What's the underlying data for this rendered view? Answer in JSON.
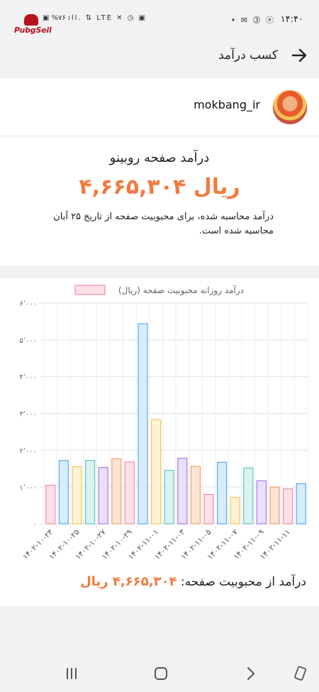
{
  "status_bar": {
    "time": "۱۴:۴۰",
    "left_icons": "▣ %۷۶ ıll. ⇅ LTE ✕ ◷ ▣",
    "right_icons": "• ✉ ⓷ ⓔ"
  },
  "logo": {
    "text": "PubgSell"
  },
  "header": {
    "title": "کسب درآمد"
  },
  "profile": {
    "username": "mokbang_ir"
  },
  "revenue": {
    "heading": "درآمد صفحه روبینو",
    "amount": "۴,۶۶۵,۳۰۴ ریال",
    "description": "درآمد محاسبه شده، برای محبوبیت صفحه از تاریخ ۲۵ آبان محاسبه شده است."
  },
  "chart_data": {
    "type": "bar",
    "legend": "درآمد روزانه محبوبیت صفحه (ریال)",
    "y_ticks": [
      "۰",
      "۱٬۰۰۰",
      "۲٬۰۰۰",
      "۳٬۰۰۰",
      "۴٬۰۰۰",
      "۵٬۰۰۰",
      "۶٬۰۰۰"
    ],
    "ylim": [
      0,
      6000
    ],
    "x_tick_labels": [
      "۱۴۰۲-۱۰-۲۳",
      "۱۴۰۲-۱۰-۲۵",
      "۱۴۰۲-۱۰-۲۷",
      "۱۴۰۲-۱۰-۲۹",
      "۱۴۰۲-۱۱-۰۱",
      "۱۴۰۲-۱۱-۰۳",
      "۱۴۰۲-۱۱-۰۵",
      "۱۴۰۲-۱۱-۰۷",
      "۱۴۰۲-۱۱-۰۹",
      "۱۴۰۲-۱۱-۱۱"
    ],
    "values": [
      1050,
      1720,
      1550,
      1720,
      1530,
      1770,
      1680,
      5440,
      2830,
      1450,
      1780,
      1560,
      800,
      1670,
      720,
      1520,
      1170,
      1000,
      950,
      1090
    ],
    "bar_fill_colors": [
      "#fde1e7",
      "#d6ecfb",
      "#fff3d6",
      "#d9f3f1",
      "#ebe0fb",
      "#fde3d3",
      "#fde1e7",
      "#d6ecfb",
      "#fff3d6",
      "#d9f3f1",
      "#ebe0fb",
      "#fde3d3",
      "#fde1e7",
      "#d6ecfb",
      "#fff3d6",
      "#d9f3f1",
      "#ebe0fb",
      "#fde3d3",
      "#fde1e7",
      "#d6ecfb"
    ],
    "bar_stroke_colors": [
      "#f28ca3",
      "#5aa9e6",
      "#f5c65a",
      "#5ec7bd",
      "#a47bea",
      "#f4a06b",
      "#f28ca3",
      "#5aa9e6",
      "#f5c65a",
      "#5ec7bd",
      "#a47bea",
      "#f4a06b",
      "#f28ca3",
      "#5aa9e6",
      "#f5c65a",
      "#5ec7bd",
      "#a47bea",
      "#f4a06b",
      "#f28ca3",
      "#5aa9e6"
    ],
    "grid": true
  },
  "total": {
    "label": "درآمد از محبوبیت صفحه:",
    "value": "۴,۶۶۵,۳۰۴ ریال"
  },
  "colors": {
    "accent": "#f07b3f"
  }
}
